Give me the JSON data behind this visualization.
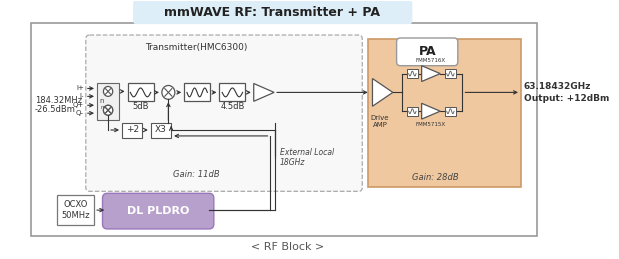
{
  "title": "mmWAVE RF: Transmitter + PA",
  "subtitle": "< RF Block >",
  "bg_color": "#ffffff",
  "title_bg": "#ddeef8",
  "pa_box_color": "#f0c8a0",
  "pldro_box_color": "#b8a0cc",
  "input_label_freq": "184.32MHz",
  "input_label_pwr": "-26.5dBm",
  "output_label": "63.18432GHz\nOutput: +12dBm",
  "transmitter_label": "Transmitter(HMC6300)",
  "pa_label": "PA",
  "gain_tx": "Gain: 11dB",
  "gain_pa": "Gain: 28dB",
  "label_5dB": "5dB",
  "label_45dB": "4.5dB",
  "label_x2": "+2",
  "label_x3": "X3",
  "label_drive_amp": "Drive\nAMP",
  "label_ocxo": "OCXO\n50MHz",
  "label_pldro": "DL PLDRO",
  "label_ext_local": "External Local\n18GHz",
  "pa_chip1": "FMM5716X",
  "pa_chip2": "FMM5715X"
}
